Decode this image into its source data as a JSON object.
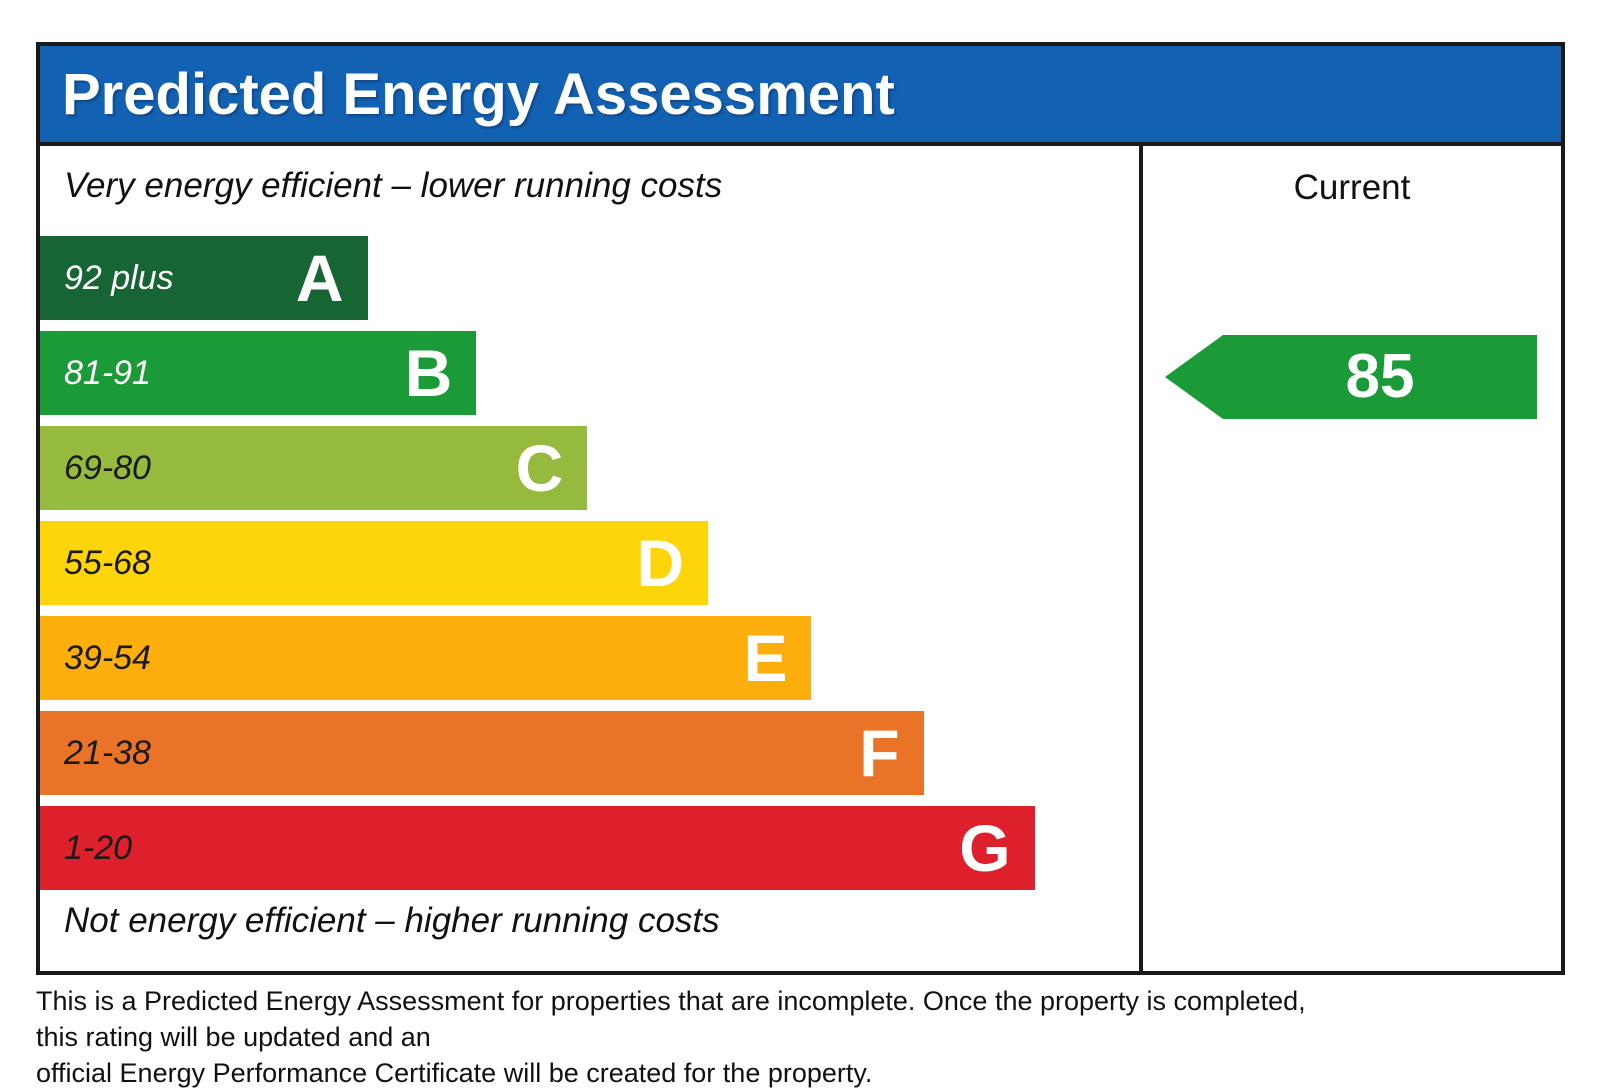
{
  "header": {
    "title": "Predicted Energy Assessment",
    "bg_color": "#1361b3"
  },
  "left_panel": {
    "top_note": "Very energy efficient – lower running costs",
    "bottom_note": "Not energy efficient – higher running costs",
    "bands": [
      {
        "grade": "A",
        "range": "92 plus",
        "color": "#176534",
        "label_color": "#ffffff",
        "width_pct": 29.8
      },
      {
        "grade": "B",
        "range": "81-91",
        "color": "#1b9a38",
        "label_color": "#ffffff",
        "width_pct": 39.7
      },
      {
        "grade": "C",
        "range": "69-80",
        "color": "#96ba3d",
        "label_color": "#1a1a1a",
        "width_pct": 49.8
      },
      {
        "grade": "D",
        "range": "55-68",
        "color": "#fed40a",
        "label_color": "#1a1a1a",
        "width_pct": 60.8
      },
      {
        "grade": "E",
        "range": "39-54",
        "color": "#fcae0c",
        "label_color": "#1a1a1a",
        "width_pct": 70.2
      },
      {
        "grade": "F",
        "range": "21-38",
        "color": "#e97326",
        "label_color": "#1a1a1a",
        "width_pct": 80.4
      },
      {
        "grade": "G",
        "range": "1-20",
        "color": "#dd202b",
        "label_color": "#1a1a1a",
        "width_pct": 90.5
      }
    ]
  },
  "right_panel": {
    "column_label": "Current",
    "rating": {
      "value": "85",
      "band": "B",
      "arrow_color": "#1b9a38"
    }
  },
  "footer": {
    "line1": "This is a Predicted Energy Assessment for properties that are incomplete. Once the property is completed, this rating will be updated and an",
    "line2": "official Energy Performance Certificate will be created for the property."
  },
  "chart_data": {
    "type": "bar",
    "title": "Predicted Energy Assessment",
    "orientation": "horizontal",
    "categories": [
      "A",
      "B",
      "C",
      "D",
      "E",
      "F",
      "G"
    ],
    "band_ranges": [
      "92 plus",
      "81-91",
      "69-80",
      "55-68",
      "39-54",
      "21-38",
      "1-20"
    ],
    "band_colors": [
      "#176534",
      "#1b9a38",
      "#96ba3d",
      "#fed40a",
      "#fcae0c",
      "#e97326",
      "#dd202b"
    ],
    "series": [
      {
        "name": "relative_bar_width_pct",
        "values": [
          29.8,
          39.7,
          49.8,
          60.8,
          70.2,
          80.4,
          90.5
        ]
      }
    ],
    "columns": [
      "Current"
    ],
    "current_rating": 85,
    "current_band": "B",
    "annotations": [
      "Very energy efficient – lower running costs",
      "Not energy efficient – higher running costs"
    ],
    "legend": "off",
    "grid": "off"
  }
}
